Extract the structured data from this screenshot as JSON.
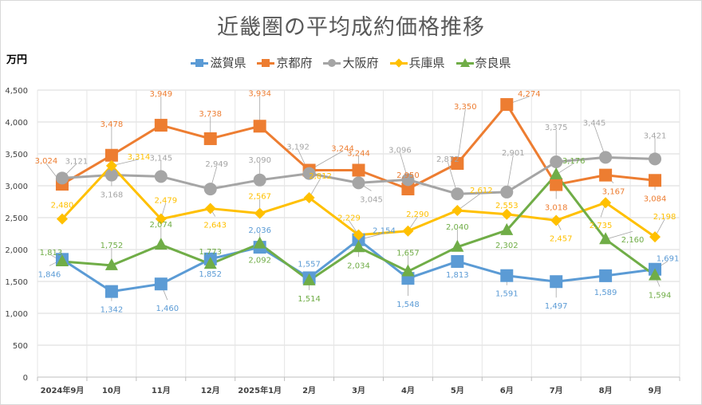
{
  "chart_data": {
    "type": "line",
    "title": "近畿圏の平均成約価格推移",
    "ylabel": "万円",
    "xlabel": "",
    "ylim": [
      0,
      4500
    ],
    "yticks": [
      0,
      500,
      1000,
      1500,
      2000,
      2500,
      3000,
      3500,
      4000,
      4500
    ],
    "ytick_labels": [
      "0",
      "500",
      "1,000",
      "1,500",
      "2,000",
      "2,500",
      "3,000",
      "3,500",
      "4,000",
      "4,500"
    ],
    "grid": true,
    "legend_position": "top-center",
    "categories": [
      "2024年9月",
      "10月",
      "11月",
      "12月",
      "2025年1月",
      "2月",
      "3月",
      "4月",
      "5月",
      "6月",
      "7月",
      "8月",
      "9月"
    ],
    "series": [
      {
        "name": "滋賀県",
        "color": "#5b9bd5",
        "marker": "square",
        "values": [
          1846,
          1342,
          1460,
          1852,
          2036,
          1557,
          2154,
          1548,
          1813,
          1591,
          1497,
          1589,
          1691
        ],
        "labels": [
          "1,846",
          "1,342",
          "1,460",
          "1,852",
          "2,036",
          "1,557",
          "2,154",
          "1,548",
          "1,813",
          "1,591",
          "1,497",
          "1,589",
          "1,691"
        ]
      },
      {
        "name": "京都府",
        "color": "#ed7d31",
        "marker": "square",
        "values": [
          3024,
          3478,
          3949,
          3738,
          3934,
          3244,
          3244,
          2950,
          3350,
          4274,
          3018,
          3167,
          3084
        ],
        "labels": [
          "3,024",
          "3,478",
          "3,949",
          "3,738",
          "3,934",
          "3,244",
          "3,244",
          "2,950",
          "3,350",
          "4,274",
          "3,018",
          "3,167",
          "3,084"
        ]
      },
      {
        "name": "大阪府",
        "color": "#a5a5a5",
        "marker": "circle",
        "values": [
          3121,
          3168,
          3145,
          2949,
          3090,
          3192,
          3045,
          3096,
          2872,
          2901,
          3375,
          3445,
          3421
        ],
        "labels": [
          "3,121",
          "3,168",
          "3,145",
          "2,949",
          "3,090",
          "3,192",
          "3,045",
          "3,096",
          "2,872",
          "2,901",
          "3,375",
          "3,445",
          "3,421"
        ]
      },
      {
        "name": "兵庫県",
        "color": "#ffc000",
        "marker": "diamond",
        "values": [
          2480,
          3314,
          2479,
          2643,
          2567,
          2812,
          2229,
          2290,
          2612,
          2553,
          2457,
          2735,
          2198
        ],
        "labels": [
          "2,480",
          "3,314",
          "2,479",
          "2,643",
          "2,567",
          "2,812",
          "2,229",
          "2,290",
          "2,612",
          "2,553",
          "2,457",
          "2,735",
          "2,198"
        ]
      },
      {
        "name": "奈良県",
        "color": "#70ad47",
        "marker": "triangle",
        "values": [
          1813,
          1752,
          2074,
          1773,
          2092,
          1514,
          2034,
          1657,
          2040,
          2302,
          3176,
          2160,
          1594
        ],
        "labels": [
          "1,813",
          "1,752",
          "2,074",
          "1,773",
          "2,092",
          "1,514",
          "2,034",
          "1,657",
          "2,040",
          "2,302",
          "3,176",
          "2,160",
          "1,594"
        ]
      }
    ]
  }
}
